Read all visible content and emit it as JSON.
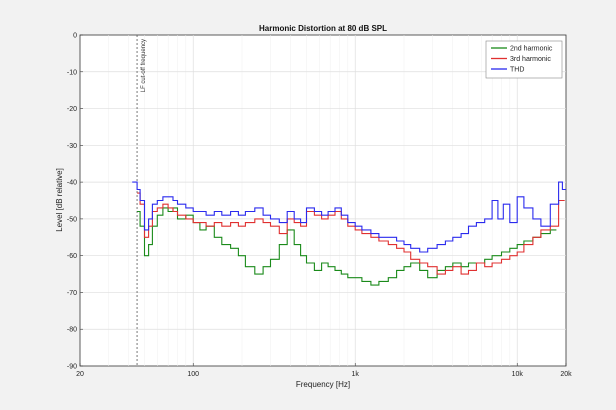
{
  "chart_data": {
    "type": "line",
    "title": "Harmonic Distortion at 80 dB SPL",
    "xlabel": "Frequency [Hz]",
    "ylabel": "Level [dB relative]",
    "xscale": "log",
    "xlim": [
      20,
      20000
    ],
    "ylim": [
      -90,
      0
    ],
    "x_ticks": [
      20,
      100,
      1000,
      10000,
      20000
    ],
    "x_tick_labels": [
      "20",
      "100",
      "1k",
      "10k",
      "20k"
    ],
    "y_ticks": [
      0,
      -10,
      -20,
      -30,
      -40,
      -50,
      -60,
      -70,
      -80,
      -90
    ],
    "y_tick_labels": [
      "0",
      "-10",
      "-20",
      "-30",
      "-40",
      "-50",
      "-60",
      "-70",
      "-80",
      "-90"
    ],
    "grid": true,
    "legend_position": "top-right",
    "step": true,
    "annotations": [
      {
        "text": "LF cut-off frequency",
        "x": 45,
        "style": "dashed-vertical"
      }
    ],
    "series": [
      {
        "name": "2nd harmonic",
        "color": "#1a8a1a",
        "x": [
          45,
          47,
          50,
          53,
          56,
          60,
          65,
          70,
          75,
          80,
          90,
          100,
          110,
          120,
          135,
          150,
          170,
          190,
          210,
          240,
          270,
          300,
          340,
          380,
          420,
          460,
          500,
          560,
          620,
          680,
          750,
          820,
          900,
          1000,
          1100,
          1250,
          1400,
          1600,
          1800,
          2000,
          2200,
          2500,
          2800,
          3200,
          3600,
          4000,
          4500,
          5000,
          5600,
          6300,
          7000,
          8000,
          9000,
          10000,
          11000,
          12500,
          14000,
          16000
        ],
        "y": [
          -48,
          -52,
          -60,
          -57,
          -52,
          -49,
          -47,
          -48,
          -47,
          -50,
          -49,
          -51,
          -53,
          -52,
          -55,
          -57,
          -58,
          -60,
          -63,
          -65,
          -63,
          -61,
          -57,
          -53,
          -57,
          -60,
          -62,
          -64,
          -62,
          -63,
          -64,
          -65,
          -66,
          -66,
          -67,
          -68,
          -67,
          -66,
          -64,
          -63,
          -62,
          -64,
          -66,
          -64,
          -63,
          -62,
          -63,
          -62,
          -62,
          -61,
          -60,
          -59,
          -58,
          -57,
          -56,
          -55,
          -54,
          -53
        ]
      },
      {
        "name": "3rd harmonic",
        "color": "#e03030",
        "x": [
          45,
          47,
          50,
          53,
          56,
          60,
          65,
          70,
          75,
          80,
          90,
          100,
          110,
          120,
          135,
          150,
          170,
          190,
          210,
          240,
          270,
          300,
          340,
          380,
          420,
          460,
          500,
          560,
          620,
          680,
          750,
          820,
          900,
          1000,
          1100,
          1250,
          1400,
          1600,
          1800,
          2000,
          2200,
          2500,
          2800,
          3200,
          3600,
          4000,
          4500,
          5000,
          5600,
          6300,
          7000,
          8000,
          9000,
          10000,
          11000,
          12500,
          14000,
          16000,
          18000
        ],
        "y": [
          -43,
          -46,
          -55,
          -52,
          -48,
          -47,
          -46,
          -47,
          -48,
          -49,
          -50,
          -51,
          -51,
          -52,
          -51,
          -52,
          -51,
          -52,
          -51,
          -50,
          -51,
          -52,
          -54,
          -50,
          -51,
          -52,
          -48,
          -49,
          -50,
          -49,
          -48,
          -50,
          -52,
          -53,
          -54,
          -55,
          -56,
          -57,
          -58,
          -59,
          -61,
          -62,
          -63,
          -65,
          -64,
          -63,
          -65,
          -64,
          -62,
          -63,
          -62,
          -61,
          -60,
          -59,
          -57,
          -55,
          -53,
          -52,
          -45
        ]
      },
      {
        "name": "THD",
        "color": "#2a2aee",
        "x": [
          42,
          45,
          47,
          50,
          53,
          56,
          60,
          65,
          70,
          75,
          80,
          90,
          100,
          110,
          120,
          135,
          150,
          170,
          190,
          210,
          240,
          270,
          300,
          340,
          380,
          420,
          460,
          500,
          560,
          620,
          680,
          750,
          820,
          900,
          1000,
          1100,
          1250,
          1400,
          1600,
          1800,
          2000,
          2200,
          2500,
          2800,
          3200,
          3600,
          4000,
          4500,
          5000,
          5600,
          6300,
          7000,
          7600,
          8200,
          9000,
          10000,
          11000,
          12500,
          14000,
          16000,
          18000,
          19000
        ],
        "y": [
          -40,
          -42,
          -45,
          -53,
          -50,
          -46,
          -45,
          -44,
          -44,
          -45,
          -46,
          -47,
          -48,
          -48,
          -49,
          -48,
          -49,
          -48,
          -49,
          -48,
          -47,
          -49,
          -50,
          -51,
          -48,
          -50,
          -51,
          -47,
          -48,
          -49,
          -48,
          -47,
          -49,
          -51,
          -52,
          -53,
          -54,
          -55,
          -55,
          -56,
          -57,
          -58,
          -59,
          -58,
          -57,
          -56,
          -55,
          -54,
          -52,
          -51,
          -50,
          -45,
          -50,
          -46,
          -51,
          -44,
          -47,
          -50,
          -52,
          -46,
          -40,
          -42
        ]
      }
    ]
  }
}
